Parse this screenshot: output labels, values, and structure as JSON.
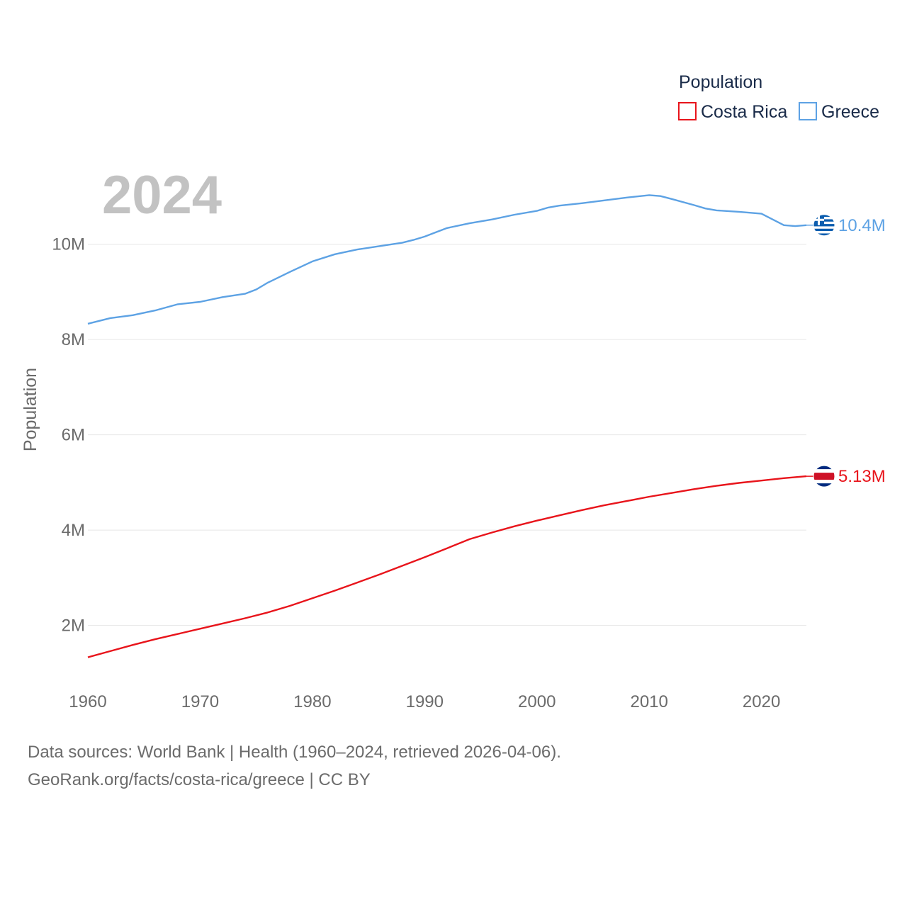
{
  "chart_data": {
    "type": "line",
    "title": "Population",
    "ylabel": "Population",
    "xlabel": "",
    "xlim": [
      1960,
      2024
    ],
    "ylim": [
      700000,
      12300000
    ],
    "xticks": [
      1960,
      1970,
      1980,
      1990,
      2000,
      2010,
      2020
    ],
    "xtick_labels": [
      "1960",
      "1970",
      "1980",
      "1990",
      "2000",
      "2010",
      "2020"
    ],
    "yticks": [
      2000000,
      4000000,
      6000000,
      8000000,
      10000000
    ],
    "ytick_labels": [
      "2M",
      "4M",
      "6M",
      "8M",
      "10M"
    ],
    "grid": true,
    "legend_position": "top-right",
    "year_label": "2024",
    "series": [
      {
        "name": "Costa Rica",
        "color": "#e8141b",
        "end_label": "5.13M",
        "flag_icon": "costa-rica-flag-icon",
        "x": [
          1960,
          1962,
          1964,
          1966,
          1968,
          1970,
          1972,
          1974,
          1976,
          1978,
          1980,
          1982,
          1984,
          1986,
          1988,
          1990,
          1992,
          1994,
          1996,
          1998,
          2000,
          2002,
          2004,
          2006,
          2008,
          2010,
          2012,
          2014,
          2016,
          2018,
          2020,
          2022,
          2024
        ],
        "values": [
          1330000,
          1460000,
          1590000,
          1710000,
          1820000,
          1930000,
          2040000,
          2150000,
          2270000,
          2410000,
          2570000,
          2730000,
          2900000,
          3070000,
          3250000,
          3430000,
          3620000,
          3810000,
          3990000,
          4170000,
          4340000,
          4480000,
          4600000,
          4710000,
          4820000,
          4920000,
          5010000,
          5090000,
          5160000,
          5220000,
          5270000,
          5300000,
          5130000
        ]
      },
      {
        "name": "Greece",
        "color": "#5da2e4",
        "end_label": "10.4M",
        "flag_icon": "greece-flag-icon",
        "x": [
          1960,
          1962,
          1964,
          1966,
          1968,
          1970,
          1972,
          1974,
          1975,
          1976,
          1978,
          1980,
          1982,
          1984,
          1986,
          1988,
          1989,
          1990,
          1991,
          1992,
          1994,
          1996,
          1998,
          2000,
          2001,
          2002,
          2004,
          2006,
          2008,
          2010,
          2011,
          2012,
          2014,
          2015,
          2016,
          2018,
          2020,
          2022,
          2023,
          2024
        ],
        "values": [
          8330000,
          8450000,
          8510000,
          8610000,
          8740000,
          8790000,
          8890000,
          8960000,
          9050000,
          9190000,
          9420000,
          9640000,
          9790000,
          9890000,
          9960000,
          10030000,
          10090000,
          10160000,
          10250000,
          10340000,
          10440000,
          10520000,
          10620000,
          10700000,
          10770000,
          10810000,
          10860000,
          10920000,
          10980000,
          11030000,
          11010000,
          10950000,
          10820000,
          10750000,
          10710000,
          10680000,
          10640000,
          10400000,
          10380000,
          10400000
        ]
      }
    ]
  },
  "legend": {
    "title": "Population",
    "items": [
      "Costa Rica",
      "Greece"
    ]
  },
  "footer": {
    "line1": "Data sources: World Bank | Health (1960–2024, retrieved 2026-04-06).",
    "line2": "GeoRank.org/facts/costa-rica/greece | CC BY"
  }
}
